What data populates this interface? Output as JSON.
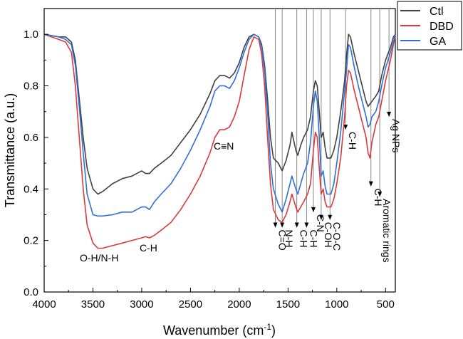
{
  "chart_data": {
    "type": "line",
    "title": "",
    "xlabel": "Wavenumber (cm",
    "xlabel_sup": "-1",
    "xlabel_close": ")",
    "ylabel": "Transmittance (a.u.)",
    "xlim": [
      4000,
      400
    ],
    "ylim": [
      0.0,
      1.1
    ],
    "x_ticks": [
      4000,
      3500,
      3000,
      2500,
      2000,
      1500,
      1000,
      500
    ],
    "y_ticks": [
      "0.0",
      "0.2",
      "0.4",
      "0.6",
      "0.8",
      "1.0"
    ],
    "legend_position": "top-right",
    "grid": false,
    "series": [
      {
        "name": "Ctl",
        "color": "#404040",
        "points": [
          [
            4000,
            1.0
          ],
          [
            3850,
            0.99
          ],
          [
            3780,
            0.99
          ],
          [
            3720,
            0.97
          ],
          [
            3680,
            0.9
          ],
          [
            3640,
            0.75
          ],
          [
            3600,
            0.6
          ],
          [
            3560,
            0.48
          ],
          [
            3500,
            0.4
          ],
          [
            3450,
            0.38
          ],
          [
            3400,
            0.39
          ],
          [
            3300,
            0.42
          ],
          [
            3200,
            0.44
          ],
          [
            3100,
            0.45
          ],
          [
            3000,
            0.47
          ],
          [
            2960,
            0.46
          ],
          [
            2920,
            0.46
          ],
          [
            2870,
            0.48
          ],
          [
            2800,
            0.5
          ],
          [
            2700,
            0.53
          ],
          [
            2600,
            0.58
          ],
          [
            2500,
            0.63
          ],
          [
            2400,
            0.69
          ],
          [
            2300,
            0.77
          ],
          [
            2250,
            0.82
          ],
          [
            2200,
            0.84
          ],
          [
            2150,
            0.84
          ],
          [
            2100,
            0.83
          ],
          [
            2050,
            0.85
          ],
          [
            2000,
            0.89
          ],
          [
            1950,
            0.95
          ],
          [
            1900,
            0.99
          ],
          [
            1850,
            1.0
          ],
          [
            1800,
            0.99
          ],
          [
            1770,
            0.96
          ],
          [
            1740,
            0.88
          ],
          [
            1710,
            0.75
          ],
          [
            1680,
            0.6
          ],
          [
            1650,
            0.52
          ],
          [
            1600,
            0.5
          ],
          [
            1560,
            0.47
          ],
          [
            1520,
            0.51
          ],
          [
            1480,
            0.57
          ],
          [
            1460,
            0.62
          ],
          [
            1420,
            0.55
          ],
          [
            1400,
            0.53
          ],
          [
            1370,
            0.57
          ],
          [
            1340,
            0.6
          ],
          [
            1300,
            0.63
          ],
          [
            1270,
            0.68
          ],
          [
            1240,
            0.78
          ],
          [
            1220,
            0.82
          ],
          [
            1200,
            0.8
          ],
          [
            1180,
            0.7
          ],
          [
            1160,
            0.6
          ],
          [
            1140,
            0.62
          ],
          [
            1120,
            0.56
          ],
          [
            1100,
            0.52
          ],
          [
            1060,
            0.52
          ],
          [
            1030,
            0.55
          ],
          [
            1000,
            0.6
          ],
          [
            960,
            0.7
          ],
          [
            920,
            0.82
          ],
          [
            900,
            0.92
          ],
          [
            880,
            1.0
          ],
          [
            860,
            0.99
          ],
          [
            820,
            0.92
          ],
          [
            780,
            0.86
          ],
          [
            740,
            0.8
          ],
          [
            700,
            0.74
          ],
          [
            680,
            0.72
          ],
          [
            660,
            0.73
          ],
          [
            640,
            0.74
          ],
          [
            600,
            0.76
          ],
          [
            570,
            0.78
          ],
          [
            540,
            0.84
          ],
          [
            500,
            0.9
          ],
          [
            450,
            0.95
          ],
          [
            420,
            0.99
          ],
          [
            400,
            1.0
          ]
        ]
      },
      {
        "name": "DBD",
        "color": "#d93a3a",
        "points": [
          [
            4000,
            1.0
          ],
          [
            3850,
            0.98
          ],
          [
            3780,
            0.97
          ],
          [
            3720,
            0.93
          ],
          [
            3680,
            0.8
          ],
          [
            3640,
            0.6
          ],
          [
            3600,
            0.4
          ],
          [
            3560,
            0.26
          ],
          [
            3500,
            0.19
          ],
          [
            3450,
            0.17
          ],
          [
            3400,
            0.17
          ],
          [
            3300,
            0.18
          ],
          [
            3200,
            0.19
          ],
          [
            3100,
            0.2
          ],
          [
            3000,
            0.21
          ],
          [
            2960,
            0.215
          ],
          [
            2920,
            0.21
          ],
          [
            2870,
            0.22
          ],
          [
            2800,
            0.24
          ],
          [
            2700,
            0.27
          ],
          [
            2600,
            0.32
          ],
          [
            2500,
            0.38
          ],
          [
            2400,
            0.45
          ],
          [
            2300,
            0.54
          ],
          [
            2250,
            0.6
          ],
          [
            2200,
            0.63
          ],
          [
            2150,
            0.63
          ],
          [
            2100,
            0.64
          ],
          [
            2050,
            0.68
          ],
          [
            2000,
            0.74
          ],
          [
            1950,
            0.84
          ],
          [
            1900,
            0.94
          ],
          [
            1850,
            0.99
          ],
          [
            1800,
            0.98
          ],
          [
            1770,
            0.92
          ],
          [
            1740,
            0.8
          ],
          [
            1710,
            0.6
          ],
          [
            1680,
            0.42
          ],
          [
            1650,
            0.32
          ],
          [
            1600,
            0.28
          ],
          [
            1560,
            0.27
          ],
          [
            1520,
            0.3
          ],
          [
            1480,
            0.35
          ],
          [
            1460,
            0.38
          ],
          [
            1420,
            0.33
          ],
          [
            1400,
            0.31
          ],
          [
            1370,
            0.33
          ],
          [
            1340,
            0.35
          ],
          [
            1300,
            0.38
          ],
          [
            1270,
            0.42
          ],
          [
            1240,
            0.55
          ],
          [
            1220,
            0.62
          ],
          [
            1200,
            0.6
          ],
          [
            1180,
            0.48
          ],
          [
            1160,
            0.38
          ],
          [
            1140,
            0.4
          ],
          [
            1120,
            0.35
          ],
          [
            1100,
            0.33
          ],
          [
            1060,
            0.33
          ],
          [
            1030,
            0.36
          ],
          [
            1000,
            0.42
          ],
          [
            960,
            0.52
          ],
          [
            920,
            0.68
          ],
          [
            900,
            0.8
          ],
          [
            880,
            0.86
          ],
          [
            860,
            0.85
          ],
          [
            820,
            0.78
          ],
          [
            780,
            0.72
          ],
          [
            740,
            0.66
          ],
          [
            700,
            0.6
          ],
          [
            680,
            0.54
          ],
          [
            660,
            0.52
          ],
          [
            640,
            0.58
          ],
          [
            600,
            0.65
          ],
          [
            570,
            0.68
          ],
          [
            540,
            0.74
          ],
          [
            500,
            0.82
          ],
          [
            450,
            0.9
          ],
          [
            420,
            0.96
          ],
          [
            400,
            0.99
          ]
        ]
      },
      {
        "name": "GA",
        "color": "#2f6fd6",
        "points": [
          [
            4000,
            1.0
          ],
          [
            3850,
            0.99
          ],
          [
            3780,
            0.98
          ],
          [
            3720,
            0.96
          ],
          [
            3680,
            0.88
          ],
          [
            3640,
            0.72
          ],
          [
            3600,
            0.54
          ],
          [
            3560,
            0.38
          ],
          [
            3500,
            0.3
          ],
          [
            3450,
            0.295
          ],
          [
            3400,
            0.295
          ],
          [
            3300,
            0.3
          ],
          [
            3200,
            0.31
          ],
          [
            3100,
            0.31
          ],
          [
            3000,
            0.33
          ],
          [
            2960,
            0.33
          ],
          [
            2920,
            0.32
          ],
          [
            2870,
            0.35
          ],
          [
            2800,
            0.38
          ],
          [
            2700,
            0.42
          ],
          [
            2600,
            0.48
          ],
          [
            2500,
            0.55
          ],
          [
            2400,
            0.63
          ],
          [
            2300,
            0.72
          ],
          [
            2250,
            0.78
          ],
          [
            2200,
            0.8
          ],
          [
            2150,
            0.8
          ],
          [
            2100,
            0.79
          ],
          [
            2050,
            0.82
          ],
          [
            2000,
            0.87
          ],
          [
            1950,
            0.93
          ],
          [
            1900,
            0.98
          ],
          [
            1850,
            1.0
          ],
          [
            1800,
            0.99
          ],
          [
            1770,
            0.95
          ],
          [
            1740,
            0.86
          ],
          [
            1710,
            0.7
          ],
          [
            1680,
            0.5
          ],
          [
            1650,
            0.4
          ],
          [
            1600,
            0.34
          ],
          [
            1560,
            0.31
          ],
          [
            1520,
            0.36
          ],
          [
            1480,
            0.42
          ],
          [
            1460,
            0.45
          ],
          [
            1420,
            0.4
          ],
          [
            1400,
            0.38
          ],
          [
            1370,
            0.42
          ],
          [
            1340,
            0.46
          ],
          [
            1300,
            0.5
          ],
          [
            1270,
            0.58
          ],
          [
            1240,
            0.72
          ],
          [
            1220,
            0.78
          ],
          [
            1200,
            0.74
          ],
          [
            1180,
            0.6
          ],
          [
            1160,
            0.45
          ],
          [
            1140,
            0.47
          ],
          [
            1120,
            0.41
          ],
          [
            1100,
            0.38
          ],
          [
            1060,
            0.38
          ],
          [
            1030,
            0.42
          ],
          [
            1000,
            0.5
          ],
          [
            960,
            0.62
          ],
          [
            920,
            0.78
          ],
          [
            900,
            0.86
          ],
          [
            880,
            0.96
          ],
          [
            860,
            0.95
          ],
          [
            820,
            0.87
          ],
          [
            780,
            0.8
          ],
          [
            740,
            0.74
          ],
          [
            700,
            0.68
          ],
          [
            680,
            0.64
          ],
          [
            660,
            0.65
          ],
          [
            640,
            0.68
          ],
          [
            600,
            0.7
          ],
          [
            570,
            0.74
          ],
          [
            540,
            0.8
          ],
          [
            500,
            0.87
          ],
          [
            450,
            0.93
          ],
          [
            420,
            0.97
          ],
          [
            400,
            1.0
          ]
        ]
      }
    ],
    "band_annotations": [
      {
        "label": "O-H/N-H"
      },
      {
        "label": "C-H"
      },
      {
        "label": "C≡N"
      }
    ],
    "arrow_annotations": [
      {
        "label": "C=O",
        "wavenumber": 1630,
        "y_end": 0.25
      },
      {
        "label": "N-H",
        "wavenumber": 1560,
        "y_end": 0.25
      },
      {
        "label": "C-H",
        "wavenumber": 1410,
        "y_end": 0.25
      },
      {
        "label": "C-H",
        "wavenumber": 1310,
        "y_end": 0.25
      },
      {
        "label": "C-N",
        "wavenumber": 1240,
        "y_end": 0.31
      },
      {
        "label": "C-OH",
        "wavenumber": 1160,
        "y_end": 0.28
      },
      {
        "label": "C-O-C",
        "wavenumber": 1070,
        "y_end": 0.28
      },
      {
        "label": "C-H",
        "wavenumber": 910,
        "y_end": 0.63
      },
      {
        "label": "C-H",
        "wavenumber": 650,
        "y_end": 0.41
      },
      {
        "label": "Aromatic rings",
        "wavenumber": 560,
        "y_end": 0.37
      },
      {
        "label": "Ag NPs",
        "wavenumber": 465,
        "y_end": 0.68
      }
    ]
  }
}
